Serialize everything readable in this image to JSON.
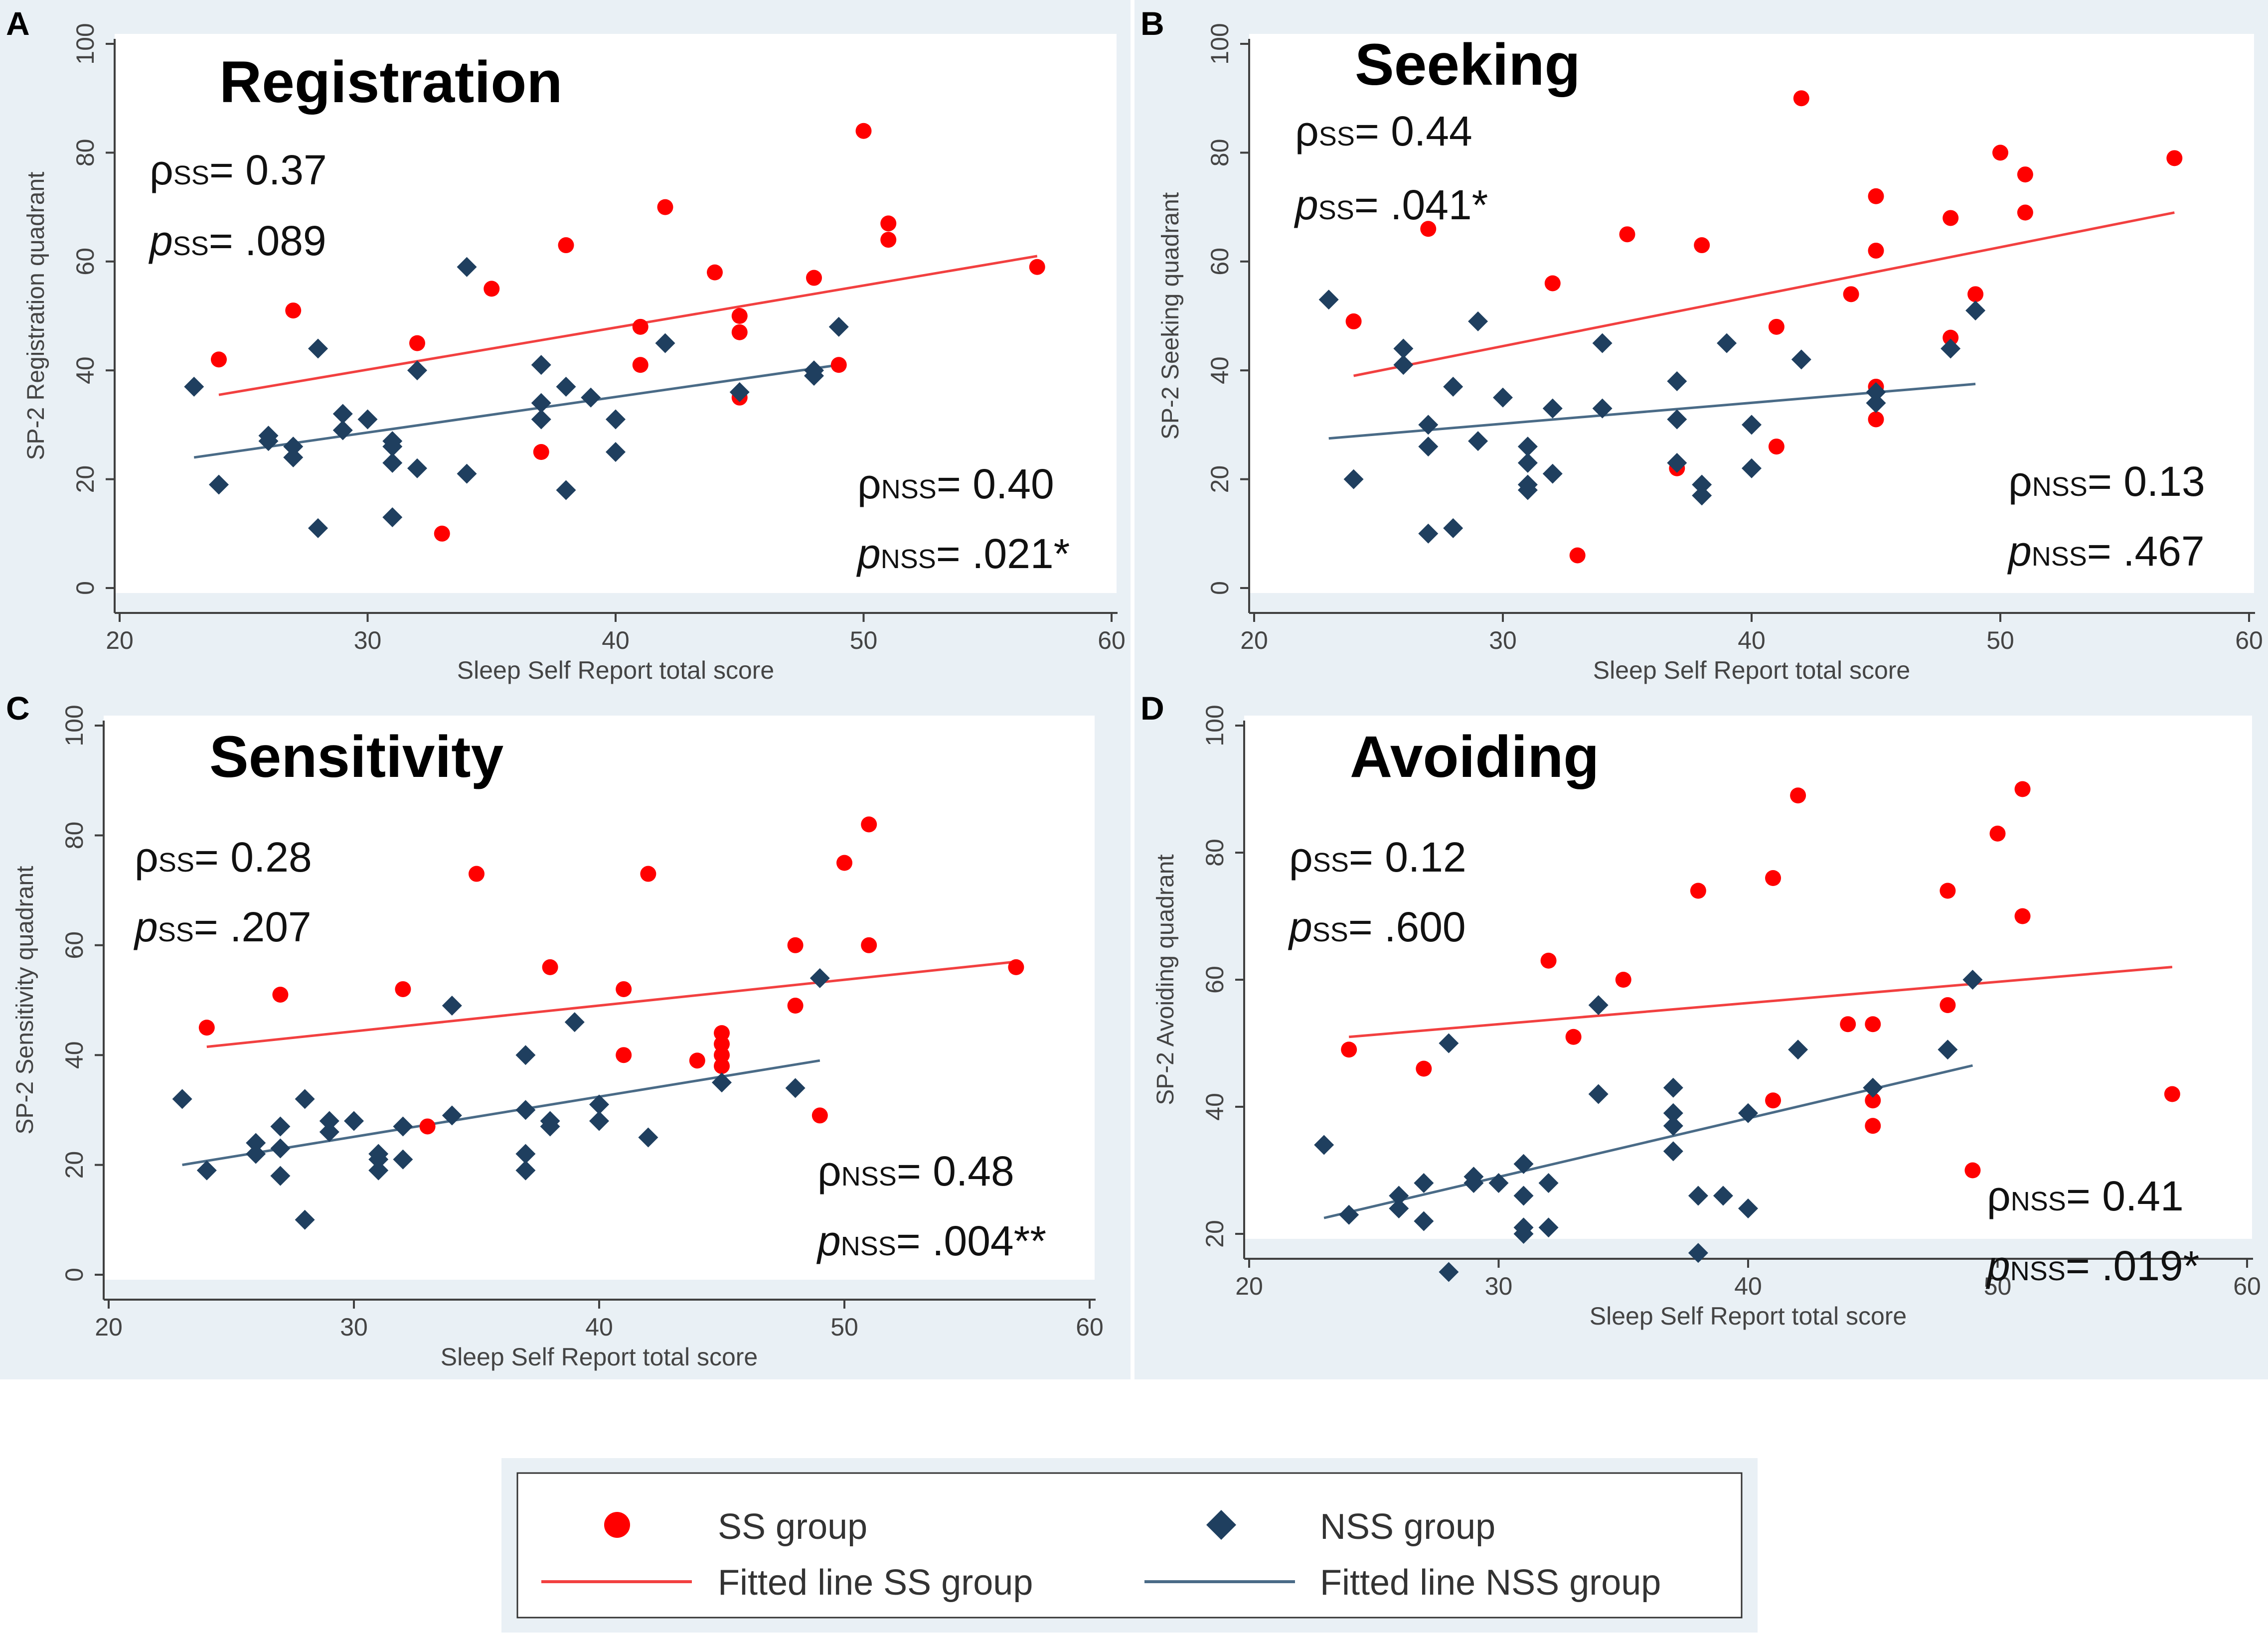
{
  "colors": {
    "ss": "#ff0000",
    "nss": "#1f3f5f",
    "ss_line": "#f24040",
    "nss_line": "#4a6b87",
    "panel_bg": "#e9f0f5",
    "axis": "#404040",
    "tick_text": "#444444",
    "stat_text": "#111111"
  },
  "legend": {
    "ss_group": "SS group",
    "nss_group": "NSS group",
    "fit_ss": "Fitted line SS group",
    "fit_nss": "Fitted line NSS group"
  },
  "chart_data": [
    {
      "letter": "A",
      "type": "scatter",
      "title": "Registration",
      "xlabel": "Sleep Self Report total score",
      "ylabel": "SP-2 Registration quadrant",
      "xlim": [
        20,
        60
      ],
      "ylim": [
        0,
        100
      ],
      "xticks": [
        20,
        30,
        40,
        50,
        60
      ],
      "yticks": [
        0,
        20,
        40,
        60,
        80,
        100
      ],
      "stats": {
        "rho_ss": "0.37",
        "p_ss": ".089",
        "rho_nss": "0.40",
        "p_nss": ".021*"
      },
      "series": [
        {
          "name": "SS group",
          "marker": "circle",
          "fit": [
            [
              24,
              35.5
            ],
            [
              57,
              61
            ]
          ],
          "points": [
            [
              24,
              42
            ],
            [
              27,
              51
            ],
            [
              32,
              45
            ],
            [
              33,
              10
            ],
            [
              35,
              55
            ],
            [
              37,
              25
            ],
            [
              38,
              63
            ],
            [
              41,
              48
            ],
            [
              41,
              41
            ],
            [
              42,
              70
            ],
            [
              44,
              58
            ],
            [
              45,
              50
            ],
            [
              45,
              47
            ],
            [
              45,
              35
            ],
            [
              48,
              57
            ],
            [
              49,
              41
            ],
            [
              50,
              84
            ],
            [
              51,
              67
            ],
            [
              51,
              64
            ],
            [
              57,
              59
            ]
          ]
        },
        {
          "name": "NSS group",
          "marker": "diamond",
          "fit": [
            [
              23,
              24
            ],
            [
              49,
              41
            ]
          ],
          "points": [
            [
              23,
              37
            ],
            [
              24,
              19
            ],
            [
              26,
              28
            ],
            [
              26,
              27
            ],
            [
              27,
              26
            ],
            [
              27,
              24
            ],
            [
              28,
              44
            ],
            [
              28,
              11
            ],
            [
              29,
              32
            ],
            [
              29,
              29
            ],
            [
              30,
              31
            ],
            [
              31,
              27
            ],
            [
              31,
              26
            ],
            [
              31,
              23
            ],
            [
              31,
              13
            ],
            [
              32,
              40
            ],
            [
              32,
              22
            ],
            [
              34,
              59
            ],
            [
              34,
              21
            ],
            [
              37,
              41
            ],
            [
              37,
              34
            ],
            [
              37,
              31
            ],
            [
              38,
              37
            ],
            [
              38,
              18
            ],
            [
              39,
              35
            ],
            [
              40,
              31
            ],
            [
              40,
              25
            ],
            [
              42,
              45
            ],
            [
              45,
              36
            ],
            [
              48,
              40
            ],
            [
              48,
              39
            ],
            [
              49,
              48
            ]
          ]
        }
      ]
    },
    {
      "letter": "B",
      "type": "scatter",
      "title": "Seeking",
      "xlabel": "Sleep Self Report total score",
      "ylabel": "SP-2 Seeking quadrant",
      "xlim": [
        20,
        60
      ],
      "ylim": [
        0,
        100
      ],
      "xticks": [
        20,
        30,
        40,
        50,
        60
      ],
      "yticks": [
        0,
        20,
        40,
        60,
        80,
        100
      ],
      "stats": {
        "rho_ss": "0.44",
        "p_ss": ".041*",
        "rho_nss": "0.13",
        "p_nss": ".467"
      },
      "series": [
        {
          "name": "SS group",
          "marker": "circle",
          "fit": [
            [
              24,
              39
            ],
            [
              57,
              69
            ]
          ],
          "points": [
            [
              24,
              49
            ],
            [
              27,
              66
            ],
            [
              32,
              56
            ],
            [
              33,
              6
            ],
            [
              35,
              65
            ],
            [
              37,
              22
            ],
            [
              38,
              63
            ],
            [
              41,
              48
            ],
            [
              41,
              26
            ],
            [
              42,
              90
            ],
            [
              44,
              54
            ],
            [
              45,
              72
            ],
            [
              45,
              62
            ],
            [
              45,
              37
            ],
            [
              45,
              31
            ],
            [
              48,
              68
            ],
            [
              48,
              46
            ],
            [
              49,
              54
            ],
            [
              50,
              80
            ],
            [
              51,
              76
            ],
            [
              51,
              69
            ],
            [
              57,
              79
            ]
          ]
        },
        {
          "name": "NSS group",
          "marker": "diamond",
          "fit": [
            [
              23,
              27.5
            ],
            [
              49,
              37.5
            ]
          ],
          "points": [
            [
              23,
              53
            ],
            [
              24,
              20
            ],
            [
              26,
              44
            ],
            [
              26,
              41
            ],
            [
              27,
              30
            ],
            [
              27,
              26
            ],
            [
              27,
              10
            ],
            [
              28,
              37
            ],
            [
              28,
              11
            ],
            [
              29,
              49
            ],
            [
              29,
              27
            ],
            [
              30,
              35
            ],
            [
              31,
              26
            ],
            [
              31,
              23
            ],
            [
              31,
              19
            ],
            [
              31,
              18
            ],
            [
              32,
              33
            ],
            [
              32,
              21
            ],
            [
              34,
              45
            ],
            [
              34,
              33
            ],
            [
              37,
              38
            ],
            [
              37,
              31
            ],
            [
              37,
              23
            ],
            [
              38,
              19
            ],
            [
              38,
              17
            ],
            [
              39,
              45
            ],
            [
              40,
              30
            ],
            [
              40,
              22
            ],
            [
              42,
              42
            ],
            [
              45,
              36
            ],
            [
              45,
              34
            ],
            [
              48,
              44
            ],
            [
              49,
              51
            ]
          ]
        }
      ]
    },
    {
      "letter": "C",
      "type": "scatter",
      "title": "Sensitivity",
      "xlabel": "Sleep Self Report total score",
      "ylabel": "SP-2 Sensitivity quadrant",
      "xlim": [
        20,
        60
      ],
      "ylim": [
        0,
        100
      ],
      "xticks": [
        20,
        30,
        40,
        50,
        60
      ],
      "yticks": [
        0,
        20,
        40,
        60,
        80,
        100
      ],
      "stats": {
        "rho_ss": "0.28",
        "p_ss": ".207",
        "rho_nss": "0.48",
        "p_nss": ".004**"
      },
      "series": [
        {
          "name": "SS group",
          "marker": "circle",
          "fit": [
            [
              24,
              41.5
            ],
            [
              57,
              57
            ]
          ],
          "points": [
            [
              24,
              45
            ],
            [
              27,
              51
            ],
            [
              32,
              52
            ],
            [
              33,
              27
            ],
            [
              35,
              73
            ],
            [
              38,
              56
            ],
            [
              41,
              52
            ],
            [
              41,
              40
            ],
            [
              42,
              73
            ],
            [
              44,
              39
            ],
            [
              45,
              44
            ],
            [
              45,
              42
            ],
            [
              45,
              40
            ],
            [
              45,
              38
            ],
            [
              48,
              60
            ],
            [
              48,
              49
            ],
            [
              49,
              29
            ],
            [
              50,
              75
            ],
            [
              51,
              82
            ],
            [
              51,
              60
            ],
            [
              57,
              56
            ]
          ]
        },
        {
          "name": "NSS group",
          "marker": "diamond",
          "fit": [
            [
              23,
              20
            ],
            [
              49,
              39
            ]
          ],
          "points": [
            [
              23,
              32
            ],
            [
              24,
              19
            ],
            [
              26,
              24
            ],
            [
              26,
              22
            ],
            [
              27,
              27
            ],
            [
              27,
              23
            ],
            [
              27,
              18
            ],
            [
              28,
              32
            ],
            [
              28,
              10
            ],
            [
              29,
              28
            ],
            [
              29,
              26
            ],
            [
              30,
              28
            ],
            [
              31,
              22
            ],
            [
              31,
              21
            ],
            [
              31,
              19
            ],
            [
              32,
              27
            ],
            [
              32,
              21
            ],
            [
              34,
              49
            ],
            [
              34,
              29
            ],
            [
              37,
              40
            ],
            [
              37,
              30
            ],
            [
              37,
              22
            ],
            [
              37,
              19
            ],
            [
              38,
              28
            ],
            [
              38,
              27
            ],
            [
              39,
              46
            ],
            [
              40,
              31
            ],
            [
              40,
              28
            ],
            [
              42,
              25
            ],
            [
              45,
              35
            ],
            [
              48,
              34
            ],
            [
              49,
              54
            ]
          ]
        }
      ]
    },
    {
      "letter": "D",
      "type": "scatter",
      "title": "Avoiding",
      "xlabel": "Sleep Self Report total score",
      "ylabel": "SP-2 Avoiding quadrant",
      "xlim": [
        20,
        60
      ],
      "ylim": [
        20,
        100
      ],
      "xticks": [
        20,
        30,
        40,
        50,
        60
      ],
      "yticks": [
        20,
        40,
        60,
        80,
        100
      ],
      "stats": {
        "rho_ss": "0.12",
        "p_ss": ".600",
        "rho_nss": "0.41",
        "p_nss": ".019*"
      },
      "series": [
        {
          "name": "SS group",
          "marker": "circle",
          "fit": [
            [
              24,
              51
            ],
            [
              57,
              62
            ]
          ],
          "points": [
            [
              24,
              49
            ],
            [
              27,
              46
            ],
            [
              32,
              63
            ],
            [
              33,
              51
            ],
            [
              35,
              60
            ],
            [
              38,
              74
            ],
            [
              41,
              76
            ],
            [
              41,
              41
            ],
            [
              42,
              89
            ],
            [
              44,
              53
            ],
            [
              45,
              53
            ],
            [
              45,
              41
            ],
            [
              45,
              37
            ],
            [
              48,
              74
            ],
            [
              48,
              56
            ],
            [
              49,
              30
            ],
            [
              50,
              83
            ],
            [
              51,
              90
            ],
            [
              51,
              70
            ],
            [
              57,
              42
            ]
          ]
        },
        {
          "name": "NSS group",
          "marker": "diamond",
          "fit": [
            [
              23,
              22.5
            ],
            [
              49,
              46.5
            ]
          ],
          "points": [
            [
              23,
              34
            ],
            [
              24,
              23
            ],
            [
              26,
              26
            ],
            [
              26,
              24
            ],
            [
              27,
              28
            ],
            [
              27,
              22
            ],
            [
              28,
              50
            ],
            [
              28,
              14
            ],
            [
              29,
              29
            ],
            [
              29,
              28
            ],
            [
              30,
              28
            ],
            [
              31,
              31
            ],
            [
              31,
              26
            ],
            [
              31,
              21
            ],
            [
              31,
              20
            ],
            [
              32,
              28
            ],
            [
              32,
              21
            ],
            [
              34,
              56
            ],
            [
              34,
              42
            ],
            [
              37,
              43
            ],
            [
              37,
              39
            ],
            [
              37,
              37
            ],
            [
              37,
              33
            ],
            [
              38,
              26
            ],
            [
              38,
              17
            ],
            [
              39,
              26
            ],
            [
              40,
              39
            ],
            [
              40,
              24
            ],
            [
              42,
              49
            ],
            [
              45,
              43
            ],
            [
              48,
              49
            ],
            [
              49,
              60
            ]
          ]
        }
      ]
    }
  ]
}
